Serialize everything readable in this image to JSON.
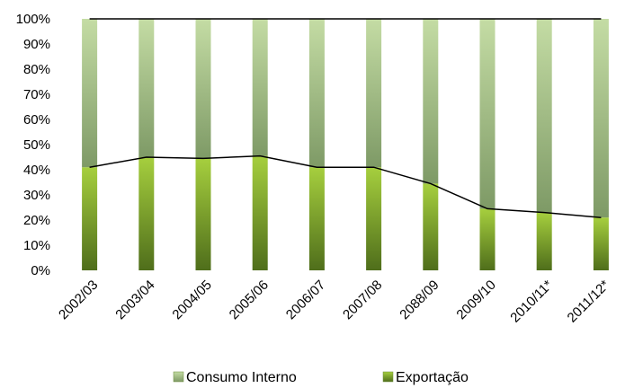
{
  "chart_data": {
    "type": "bar",
    "stacked_percent": true,
    "categories": [
      "2002/03",
      "2003/04",
      "2004/05",
      "2005/06",
      "2006/07",
      "2007/08",
      "2088/09",
      "2009/10",
      "2010/11*",
      "2011/12*"
    ],
    "series": [
      {
        "name": "Exportação",
        "values": [
          41,
          45,
          44.5,
          45.5,
          41,
          41,
          34.5,
          24.5,
          23,
          21
        ],
        "color": "#6f9a2e"
      },
      {
        "name": "Consumo Interno",
        "values": [
          59,
          55,
          55.5,
          54.5,
          59,
          59,
          65.5,
          75.5,
          77,
          79
        ],
        "color": "#a9c08a"
      }
    ],
    "line_series": {
      "of": "Exportação",
      "values": [
        41,
        45,
        44.5,
        45.5,
        41,
        41,
        34.5,
        24.5,
        23,
        21
      ],
      "color": "#000000"
    },
    "ylim": [
      0,
      100
    ],
    "yticks": [
      "0%",
      "10%",
      "20%",
      "30%",
      "40%",
      "50%",
      "60%",
      "70%",
      "80%",
      "90%",
      "100%"
    ],
    "grid": false,
    "legend": {
      "placement": "bottom",
      "items": [
        "Consumo Interno",
        "Exportação"
      ]
    },
    "title": "",
    "xlabel": "",
    "ylabel": ""
  }
}
